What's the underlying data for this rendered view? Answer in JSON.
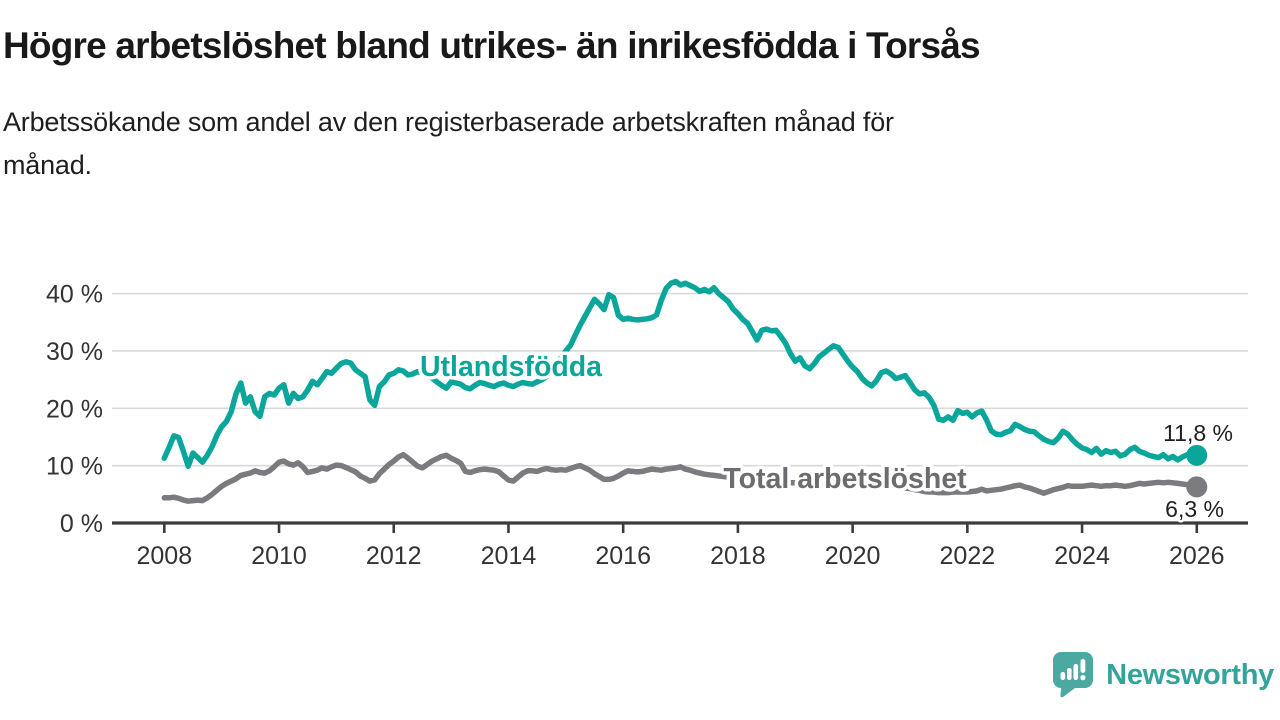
{
  "header": {
    "title": "Högre arbetslöshet bland utrikes- än inrikesfödda i Torsås",
    "subtitle_lines": [
      "Arbetssökande som andel av den registerbaserade arbetskraften månad för",
      "månad."
    ]
  },
  "chart_data": {
    "type": "line",
    "title": "Högre arbetslöshet bland utrikes- än inrikesfödda i Torsås",
    "subtitle": "Arbetssökande som andel av den registerbaserade arbetskraften månad för månad.",
    "unit": "%",
    "grid": true,
    "x_axis": {
      "ticks": [
        2008,
        2010,
        2012,
        2014,
        2016,
        2018,
        2020,
        2022,
        2024,
        2026
      ],
      "tick_labels": [
        "2008",
        "2010",
        "2012",
        "2014",
        "2016",
        "2018",
        "2020",
        "2022",
        "2024",
        "2026"
      ],
      "range": [
        2007.9,
        2026.9
      ]
    },
    "y_axis": {
      "ticks": [
        0,
        10,
        20,
        30,
        40
      ],
      "tick_labels": [
        "0 %",
        "10 %",
        "20 %",
        "30 %",
        "40 %"
      ],
      "range": [
        0,
        44
      ]
    },
    "colors": {
      "utlandsfodda_line": "#0aa69b",
      "total_line": "#7b7b7f",
      "total_label": "#6b6b70",
      "grid": "#d9d9d9",
      "axis": "#3c3c3c",
      "annotation_text": "#1f1f1f"
    },
    "series": [
      {
        "name": "Total arbetslöshet",
        "color": "#7b7b7f",
        "label_color": "#6b6b70",
        "end_label": "6,3 %",
        "end_value": 6.3,
        "start_year": 2008,
        "points_per_year": 12,
        "values": [
          4.4,
          4.4,
          4.5,
          4.3,
          4.0,
          3.8,
          3.9,
          4.0,
          3.9,
          4.4,
          5.0,
          5.7,
          6.4,
          6.9,
          7.3,
          7.7,
          8.3,
          8.5,
          8.7,
          9.1,
          8.8,
          8.7,
          9.1,
          9.8,
          10.6,
          10.8,
          10.3,
          10.1,
          10.5,
          9.8,
          8.8,
          9.0,
          9.2,
          9.6,
          9.4,
          9.8,
          10.1,
          10.0,
          9.7,
          9.3,
          8.9,
          8.2,
          7.8,
          7.3,
          7.5,
          8.6,
          9.4,
          10.2,
          10.8,
          11.5,
          11.9,
          11.3,
          10.6,
          9.9,
          9.6,
          10.2,
          10.8,
          11.2,
          11.6,
          11.8,
          11.3,
          10.9,
          10.4,
          9.0,
          8.8,
          9.1,
          9.3,
          9.4,
          9.3,
          9.2,
          8.9,
          8.2,
          7.5,
          7.3,
          8.0,
          8.7,
          9.1,
          9.1,
          9.0,
          9.3,
          9.5,
          9.3,
          9.2,
          9.3,
          9.2,
          9.5,
          9.8,
          10.0,
          9.6,
          9.2,
          8.6,
          8.1,
          7.6,
          7.6,
          7.8,
          8.2,
          8.7,
          9.1,
          9.0,
          8.9,
          9.0,
          9.2,
          9.4,
          9.3,
          9.2,
          9.4,
          9.5,
          9.6,
          9.8,
          9.4,
          9.2,
          8.9,
          8.7,
          8.5,
          8.4,
          8.3,
          8.2,
          8.1,
          8.0,
          7.9,
          7.8,
          7.7,
          7.7,
          7.6,
          7.5,
          7.4,
          7.4,
          7.3,
          7.2,
          7.1,
          7.1,
          7.0,
          7.0,
          6.9,
          6.9,
          6.8,
          6.8,
          6.8,
          6.7,
          6.7,
          6.6,
          6.6,
          6.6,
          6.6,
          6.6,
          6.6,
          6.7,
          6.8,
          6.9,
          6.9,
          6.8,
          6.7,
          6.6,
          6.4,
          6.2,
          6.1,
          6.0,
          5.8,
          5.7,
          5.5,
          5.4,
          5.4,
          5.3,
          5.3,
          5.3,
          5.4,
          5.4,
          5.4,
          5.4,
          5.5,
          5.6,
          5.9,
          5.6,
          5.7,
          5.8,
          5.9,
          6.1,
          6.3,
          6.5,
          6.6,
          6.3,
          6.1,
          5.8,
          5.5,
          5.2,
          5.5,
          5.8,
          6.0,
          6.2,
          6.5,
          6.4,
          6.4,
          6.4,
          6.5,
          6.6,
          6.5,
          6.4,
          6.5,
          6.5,
          6.6,
          6.5,
          6.4,
          6.5,
          6.7,
          6.9,
          6.8,
          6.9,
          7.0,
          7.1,
          7.0,
          7.1,
          7.0,
          6.9,
          6.8,
          6.7,
          6.5,
          6.3
        ]
      },
      {
        "name": "Utlandsfödda",
        "color": "#0aa69b",
        "label_color": "#0aa69b",
        "end_label": "11,8 %",
        "end_value": 11.8,
        "start_year": 2008,
        "points_per_year": 12,
        "values": [
          11.3,
          13.2,
          15.2,
          14.9,
          12.5,
          9.9,
          12.2,
          11.4,
          10.6,
          11.8,
          13.3,
          15.3,
          16.8,
          17.7,
          19.4,
          22.5,
          24.4,
          20.9,
          22.0,
          19.4,
          18.6,
          22.0,
          22.6,
          22.3,
          23.5,
          24.1,
          20.9,
          22.6,
          21.7,
          22.0,
          23.2,
          24.7,
          24.1,
          25.2,
          26.4,
          26.1,
          27.0,
          27.8,
          28.1,
          27.9,
          26.7,
          26.1,
          25.5,
          21.5,
          20.5,
          23.8,
          24.6,
          25.8,
          26.1,
          26.7,
          26.5,
          25.8,
          26.0,
          26.4,
          26.2,
          25.6,
          25.3,
          24.6,
          24.0,
          23.5,
          24.6,
          24.4,
          24.2,
          23.6,
          23.4,
          24.0,
          24.5,
          24.3,
          24.0,
          23.8,
          24.2,
          24.4,
          24.0,
          23.8,
          24.2,
          24.5,
          24.3,
          24.2,
          24.6,
          25.0,
          25.5,
          26.5,
          27.8,
          28.8,
          30.0,
          31.0,
          32.8,
          34.5,
          36.0,
          37.5,
          39.0,
          38.2,
          37.2,
          39.8,
          39.3,
          36.2,
          35.5,
          35.7,
          35.5,
          35.4,
          35.5,
          35.6,
          35.8,
          36.3,
          38.9,
          40.9,
          41.8,
          42.1,
          41.5,
          41.8,
          41.4,
          41.0,
          40.4,
          40.7,
          40.3,
          41.0,
          40.0,
          39.3,
          38.6,
          37.3,
          36.5,
          35.5,
          34.8,
          33.4,
          31.9,
          33.6,
          33.8,
          33.5,
          33.6,
          32.5,
          31.3,
          29.5,
          28.2,
          28.8,
          27.4,
          26.9,
          27.8,
          29.0,
          29.6,
          30.3,
          30.9,
          30.6,
          29.4,
          28.2,
          27.2,
          26.4,
          25.2,
          24.4,
          23.9,
          24.8,
          26.2,
          26.5,
          26.0,
          25.2,
          25.4,
          25.7,
          24.5,
          23.2,
          22.5,
          22.7,
          21.9,
          20.5,
          18.1,
          17.9,
          18.5,
          17.9,
          19.6,
          19.1,
          19.3,
          18.5,
          19.2,
          19.5,
          18.0,
          16.1,
          15.5,
          15.4,
          15.8,
          16.1,
          17.2,
          16.8,
          16.3,
          16.0,
          15.9,
          15.2,
          14.6,
          14.2,
          14.0,
          14.8,
          16.0,
          15.5,
          14.5,
          13.7,
          13.1,
          12.8,
          12.3,
          13.0,
          12.0,
          12.6,
          12.3,
          12.5,
          11.7,
          12.0,
          12.8,
          13.2,
          12.5,
          12.2,
          11.8,
          11.6,
          11.4,
          11.9,
          11.2,
          11.6,
          11.0,
          11.5,
          11.9,
          11.6,
          11.8
        ]
      }
    ],
    "legend_position": "inline-labels"
  },
  "footer": {
    "brand": "Newsworthy",
    "brand_color": "#35a39a",
    "icon_color": "#4ca9a1"
  }
}
